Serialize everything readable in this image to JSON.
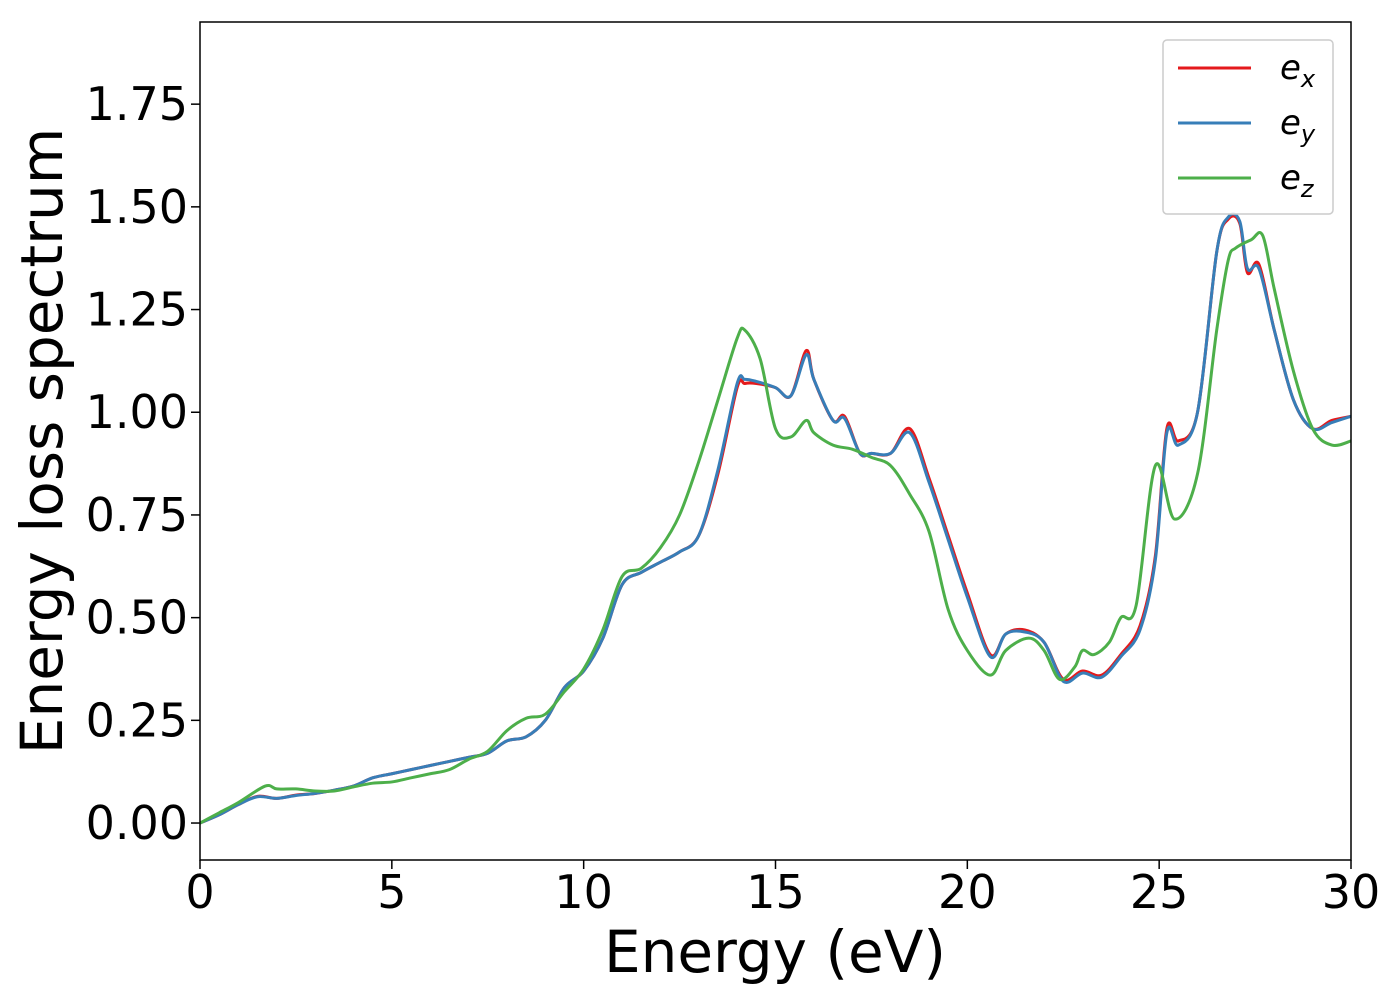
{
  "chart_data": {
    "type": "line",
    "title": "",
    "xlabel": "Energy (eV)",
    "ylabel": "Energy loss spectrum",
    "xlim": [
      0,
      30
    ],
    "ylim": [
      -0.09,
      1.95
    ],
    "xticks": [
      0,
      5,
      10,
      15,
      20,
      25,
      30
    ],
    "xtick_labels": [
      "0",
      "5",
      "10",
      "15",
      "20",
      "25",
      "30"
    ],
    "yticks": [
      0,
      0.25,
      0.5,
      0.75,
      1.0,
      1.25,
      1.5,
      1.75
    ],
    "ytick_labels": [
      "0.00",
      "0.25",
      "0.50",
      "0.75",
      "1.00",
      "1.25",
      "1.50",
      "1.75"
    ],
    "grid": false,
    "legend_position": "top-right",
    "series": [
      {
        "name": "e_x",
        "legend_base": "e",
        "legend_sub": "x",
        "color": "#e41a1c",
        "x": [
          0,
          0.5,
          1,
          1.5,
          2,
          2.5,
          3,
          3.5,
          4,
          4.5,
          5,
          5.5,
          6,
          6.5,
          7,
          7.5,
          8,
          8.5,
          9,
          9.5,
          10,
          10.5,
          11,
          11.5,
          12,
          12.5,
          13,
          13.5,
          14,
          14.2,
          14.5,
          15,
          15.4,
          15.8,
          16,
          16.5,
          16.8,
          17.2,
          17.5,
          18,
          18.5,
          19,
          19.5,
          20,
          20.6,
          21,
          21.5,
          22,
          22.5,
          23,
          23.5,
          24,
          24.5,
          24.9,
          25.2,
          25.5,
          26,
          26.5,
          26.8,
          27.1,
          27.3,
          27.6,
          28,
          28.5,
          29,
          29.5,
          30
        ],
        "y": [
          0,
          0.02,
          0.045,
          0.065,
          0.06,
          0.068,
          0.072,
          0.08,
          0.09,
          0.11,
          0.12,
          0.13,
          0.14,
          0.15,
          0.16,
          0.17,
          0.2,
          0.21,
          0.25,
          0.33,
          0.37,
          0.45,
          0.58,
          0.61,
          0.635,
          0.66,
          0.7,
          0.85,
          1.06,
          1.07,
          1.07,
          1.06,
          1.04,
          1.15,
          1.08,
          0.98,
          0.99,
          0.9,
          0.9,
          0.9,
          0.96,
          0.84,
          0.7,
          0.56,
          0.41,
          0.46,
          0.47,
          0.44,
          0.35,
          0.37,
          0.36,
          0.41,
          0.48,
          0.65,
          0.96,
          0.93,
          1.0,
          1.39,
          1.47,
          1.46,
          1.34,
          1.36,
          1.2,
          1.03,
          0.96,
          0.98,
          0.99
        ]
      },
      {
        "name": "e_y",
        "legend_base": "e",
        "legend_sub": "y",
        "color": "#377eb8",
        "x": [
          0,
          0.5,
          1,
          1.5,
          2,
          2.5,
          3,
          3.5,
          4,
          4.5,
          5,
          5.5,
          6,
          6.5,
          7,
          7.5,
          8,
          8.5,
          9,
          9.5,
          10,
          10.5,
          11,
          11.5,
          12,
          12.5,
          13,
          13.5,
          14,
          14.2,
          14.5,
          15,
          15.4,
          15.8,
          16,
          16.5,
          16.8,
          17.2,
          17.5,
          18,
          18.5,
          19,
          19.5,
          20,
          20.6,
          21,
          21.5,
          22,
          22.5,
          23,
          23.5,
          24,
          24.5,
          24.9,
          25.2,
          25.5,
          26,
          26.5,
          26.8,
          27.1,
          27.3,
          27.6,
          28,
          28.5,
          29,
          29.5,
          30
        ],
        "y": [
          0,
          0.02,
          0.045,
          0.064,
          0.06,
          0.067,
          0.072,
          0.08,
          0.09,
          0.11,
          0.12,
          0.13,
          0.14,
          0.15,
          0.16,
          0.17,
          0.2,
          0.21,
          0.25,
          0.33,
          0.37,
          0.45,
          0.58,
          0.61,
          0.635,
          0.66,
          0.7,
          0.86,
          1.07,
          1.08,
          1.075,
          1.06,
          1.04,
          1.14,
          1.08,
          0.98,
          0.985,
          0.9,
          0.9,
          0.9,
          0.95,
          0.83,
          0.69,
          0.55,
          0.405,
          0.46,
          0.465,
          0.44,
          0.345,
          0.365,
          0.355,
          0.405,
          0.47,
          0.64,
          0.95,
          0.92,
          1.0,
          1.39,
          1.475,
          1.465,
          1.35,
          1.35,
          1.2,
          1.03,
          0.96,
          0.975,
          0.99
        ]
      },
      {
        "name": "e_z",
        "legend_base": "e",
        "legend_sub": "z",
        "color": "#4daf4a",
        "x": [
          0,
          0.5,
          1,
          1.7,
          2,
          2.5,
          3,
          3.5,
          4,
          4.5,
          5,
          5.5,
          6,
          6.5,
          7,
          7.5,
          8,
          8.5,
          9,
          9.5,
          10,
          10.5,
          11,
          11.5,
          12,
          12.5,
          13,
          13.5,
          14,
          14.2,
          14.6,
          15,
          15.4,
          15.8,
          16,
          16.5,
          17,
          17.5,
          18,
          18.5,
          19,
          19.5,
          20,
          20.6,
          21,
          21.6,
          22,
          22.4,
          22.8,
          23,
          23.3,
          23.7,
          24,
          24.4,
          24.9,
          25.4,
          26,
          26.5,
          26.8,
          27,
          27.4,
          27.7,
          28,
          28.5,
          29,
          29.5,
          30
        ],
        "y": [
          0,
          0.025,
          0.05,
          0.09,
          0.083,
          0.083,
          0.078,
          0.078,
          0.088,
          0.097,
          0.1,
          0.11,
          0.12,
          0.13,
          0.155,
          0.175,
          0.225,
          0.255,
          0.265,
          0.32,
          0.375,
          0.47,
          0.6,
          0.62,
          0.67,
          0.75,
          0.88,
          1.03,
          1.18,
          1.2,
          1.13,
          0.96,
          0.94,
          0.98,
          0.95,
          0.92,
          0.91,
          0.89,
          0.87,
          0.8,
          0.71,
          0.52,
          0.42,
          0.36,
          0.42,
          0.45,
          0.42,
          0.35,
          0.38,
          0.42,
          0.41,
          0.44,
          0.5,
          0.53,
          0.87,
          0.74,
          0.85,
          1.2,
          1.37,
          1.4,
          1.42,
          1.43,
          1.3,
          1.1,
          0.96,
          0.92,
          0.93
        ]
      }
    ]
  }
}
